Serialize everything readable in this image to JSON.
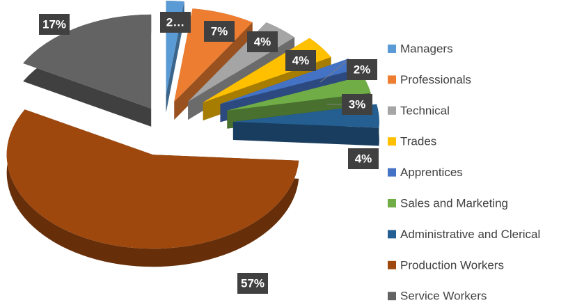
{
  "chart_data": {
    "type": "pie",
    "categories": [
      "Managers",
      "Professionals",
      "Technical",
      "Trades",
      "Apprentices",
      "Sales and Marketing",
      "Administrative and Clerical",
      "Production Workers",
      "Service Workers"
    ],
    "values": [
      2,
      7,
      4,
      4,
      2,
      3,
      4,
      57,
      17
    ],
    "value_labels": [
      "2…",
      "7%",
      "4%",
      "4%",
      "2%",
      "3%",
      "4%",
      "57%",
      "17%"
    ],
    "colors": [
      "#5b9bd5",
      "#ed7d31",
      "#a5a5a5",
      "#ffc000",
      "#4472c4",
      "#70ad47",
      "#255e91",
      "#9e480e",
      "#636363"
    ],
    "legend": "right"
  }
}
